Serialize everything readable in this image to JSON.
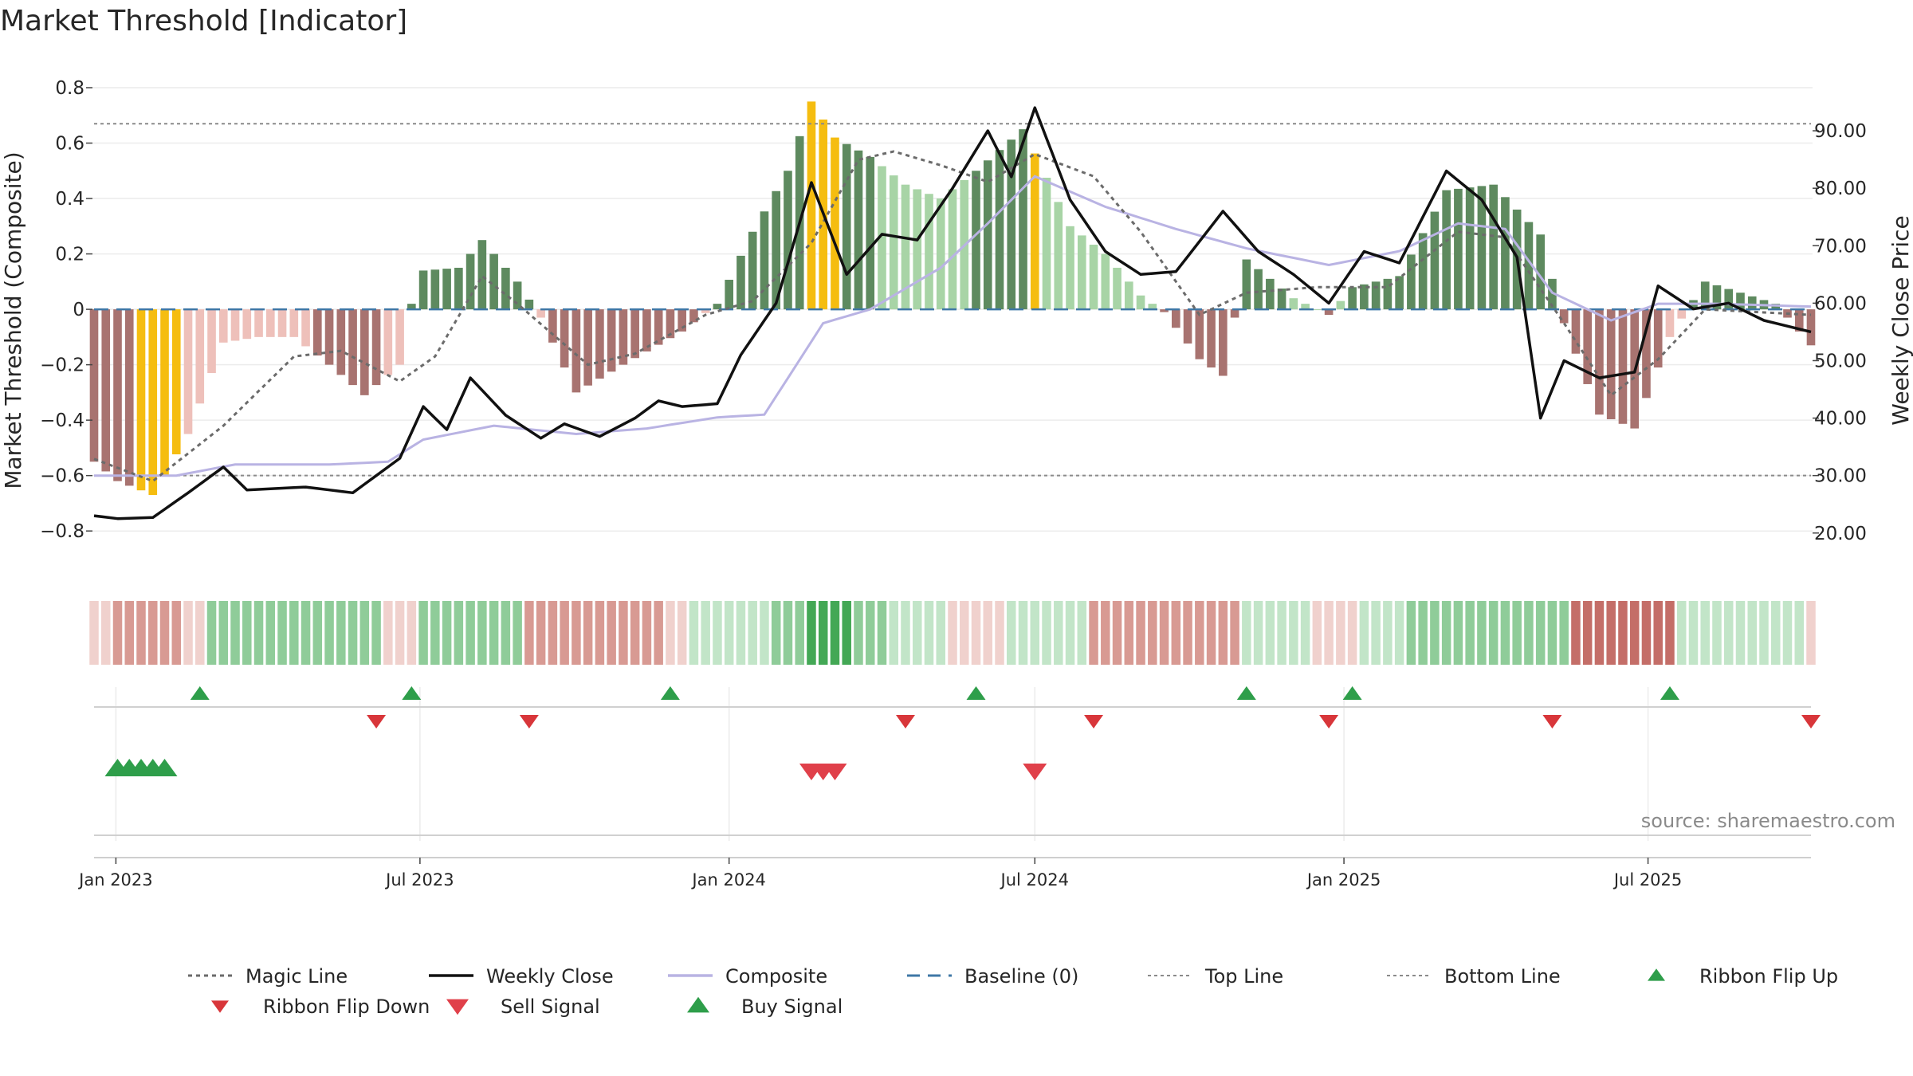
{
  "chart_data": {
    "type": "bar",
    "title": "Market Threshold [Indicator]",
    "ylabel_left": "Market Threshold (Composite)",
    "ylabel_right": "Weekly Close Price",
    "ylim_left": [
      -0.88,
      0.8
    ],
    "ylim_right": [
      16.5,
      97.5
    ],
    "left_ticks": [
      "0.8",
      "0.6",
      "0.4",
      "0.2",
      "0",
      "−0.2",
      "−0.4",
      "−0.6",
      "−0.8"
    ],
    "left_tick_values": [
      0.8,
      0.6,
      0.4,
      0.2,
      0,
      -0.2,
      -0.4,
      -0.6,
      -0.8
    ],
    "right_ticks": [
      "90.00",
      "80.00",
      "70.00",
      "60.00",
      "50.00",
      "40.00",
      "30.00",
      "20.00"
    ],
    "right_tick_values": [
      90,
      80,
      70,
      60,
      50,
      40,
      30,
      20
    ],
    "x_start": "2022-12-19",
    "x_end": "2025-10-06",
    "x_ticks": [
      {
        "label": "Jan 2023",
        "date": "2023-01-01"
      },
      {
        "label": "Jul 2023",
        "date": "2023-07-01"
      },
      {
        "label": "Jan 2024",
        "date": "2024-01-01"
      },
      {
        "label": "Jul 2024",
        "date": "2024-07-01"
      },
      {
        "label": "Jan 2025",
        "date": "2025-01-01"
      },
      {
        "label": "Jul 2025",
        "date": "2025-07-01"
      }
    ],
    "top_line": 0.67,
    "bottom_line": -0.6,
    "composite_anchors": [
      [
        "2022-12-19",
        -0.6
      ],
      [
        "2023-02-06",
        -0.6
      ],
      [
        "2023-03-13",
        -0.56
      ],
      [
        "2023-05-08",
        -0.56
      ],
      [
        "2023-06-12",
        -0.55
      ],
      [
        "2023-07-03",
        -0.47
      ],
      [
        "2023-08-14",
        -0.42
      ],
      [
        "2023-10-02",
        -0.45
      ],
      [
        "2023-11-13",
        -0.43
      ],
      [
        "2023-12-25",
        -0.39
      ],
      [
        "2024-01-22",
        -0.38
      ],
      [
        "2024-02-26",
        -0.05
      ],
      [
        "2024-03-25",
        0
      ],
      [
        "2024-05-06",
        0.15
      ],
      [
        "2024-06-03",
        0.31
      ],
      [
        "2024-07-01",
        0.48
      ],
      [
        "2024-08-12",
        0.37
      ],
      [
        "2024-09-23",
        0.29
      ],
      [
        "2024-11-04",
        0.22
      ],
      [
        "2024-12-23",
        0.16
      ],
      [
        "2025-02-03",
        0.21
      ],
      [
        "2025-03-10",
        0.31
      ],
      [
        "2025-04-07",
        0.29
      ],
      [
        "2025-05-05",
        0.06
      ],
      [
        "2025-06-09",
        -0.04
      ],
      [
        "2025-07-07",
        0.02
      ],
      [
        "2025-08-11",
        0.02
      ],
      [
        "2025-10-06",
        0.01
      ]
    ],
    "magic_line_anchors": [
      [
        "2022-12-19",
        -0.54
      ],
      [
        "2023-01-23",
        -0.62
      ],
      [
        "2023-03-06",
        -0.42
      ],
      [
        "2023-04-17",
        -0.17
      ],
      [
        "2023-05-15",
        -0.15
      ],
      [
        "2023-06-19",
        -0.26
      ],
      [
        "2023-07-10",
        -0.17
      ],
      [
        "2023-08-07",
        0.12
      ],
      [
        "2023-08-28",
        0.02
      ],
      [
        "2023-10-09",
        -0.2
      ],
      [
        "2023-11-06",
        -0.16
      ],
      [
        "2023-12-18",
        -0.02
      ],
      [
        "2024-01-15",
        0.03
      ],
      [
        "2024-02-19",
        0.24
      ],
      [
        "2024-03-18",
        0.54
      ],
      [
        "2024-04-08",
        0.57
      ],
      [
        "2024-05-06",
        0.52
      ],
      [
        "2024-06-03",
        0.46
      ],
      [
        "2024-07-01",
        0.56
      ],
      [
        "2024-08-05",
        0.48
      ],
      [
        "2024-09-02",
        0.28
      ],
      [
        "2024-10-07",
        -0.02
      ],
      [
        "2024-11-04",
        0.06
      ],
      [
        "2024-12-16",
        0.08
      ],
      [
        "2025-01-27",
        0.08
      ],
      [
        "2025-03-10",
        0.28
      ],
      [
        "2025-04-07",
        0.26
      ],
      [
        "2025-05-12",
        -0.05
      ],
      [
        "2025-06-09",
        -0.31
      ],
      [
        "2025-07-07",
        -0.18
      ],
      [
        "2025-08-04",
        0
      ],
      [
        "2025-10-06",
        -0.02
      ]
    ],
    "weekly_close_anchors": [
      [
        "2022-12-19",
        23
      ],
      [
        "2023-01-02",
        22.5
      ],
      [
        "2023-01-23",
        22.7
      ],
      [
        "2023-02-13",
        27
      ],
      [
        "2023-03-06",
        31.5
      ],
      [
        "2023-03-20",
        27.5
      ],
      [
        "2023-04-24",
        28
      ],
      [
        "2023-05-22",
        27
      ],
      [
        "2023-06-19",
        33
      ],
      [
        "2023-07-03",
        42
      ],
      [
        "2023-07-17",
        38
      ],
      [
        "2023-07-31",
        47
      ],
      [
        "2023-08-21",
        40.5
      ],
      [
        "2023-09-11",
        36.5
      ],
      [
        "2023-09-25",
        39
      ],
      [
        "2023-10-16",
        36.8
      ],
      [
        "2023-11-06",
        40
      ],
      [
        "2023-11-20",
        43
      ],
      [
        "2023-12-04",
        42
      ],
      [
        "2023-12-25",
        42.5
      ],
      [
        "2024-01-08",
        51
      ],
      [
        "2024-01-29",
        60
      ],
      [
        "2024-02-19",
        81
      ],
      [
        "2024-03-11",
        65
      ],
      [
        "2024-04-01",
        72
      ],
      [
        "2024-04-22",
        71
      ],
      [
        "2024-05-13",
        80
      ],
      [
        "2024-06-03",
        90
      ],
      [
        "2024-06-17",
        82
      ],
      [
        "2024-07-01",
        94
      ],
      [
        "2024-07-22",
        78
      ],
      [
        "2024-08-12",
        69
      ],
      [
        "2024-09-02",
        65
      ],
      [
        "2024-09-23",
        65.5
      ],
      [
        "2024-10-21",
        76
      ],
      [
        "2024-11-11",
        69
      ],
      [
        "2024-12-02",
        65
      ],
      [
        "2024-12-23",
        60
      ],
      [
        "2025-01-13",
        69
      ],
      [
        "2025-02-03",
        67
      ],
      [
        "2025-03-03",
        83
      ],
      [
        "2025-03-24",
        78
      ],
      [
        "2025-04-14",
        68
      ],
      [
        "2025-04-28",
        40
      ],
      [
        "2025-05-12",
        50
      ],
      [
        "2025-06-02",
        47
      ],
      [
        "2025-06-23",
        48
      ],
      [
        "2025-07-07",
        63
      ],
      [
        "2025-07-28",
        59
      ],
      [
        "2025-08-18",
        60
      ],
      [
        "2025-09-08",
        57
      ],
      [
        "2025-10-06",
        55
      ]
    ],
    "bar_anchors": [
      [
        "2022-12-19",
        -0.55
      ],
      [
        "2023-01-02",
        -0.62
      ],
      [
        "2023-01-23",
        -0.67
      ],
      [
        "2023-02-13",
        -0.45
      ],
      [
        "2023-03-06",
        -0.12
      ],
      [
        "2023-03-27",
        -0.1
      ],
      [
        "2023-04-17",
        -0.1
      ],
      [
        "2023-05-08",
        -0.2
      ],
      [
        "2023-05-29",
        -0.31
      ],
      [
        "2023-06-19",
        -0.2
      ],
      [
        "2023-06-26",
        0.02
      ],
      [
        "2023-07-03",
        0.14
      ],
      [
        "2023-07-24",
        0.15
      ],
      [
        "2023-08-07",
        0.25
      ],
      [
        "2023-08-28",
        0.1
      ],
      [
        "2023-09-11",
        -0.03
      ],
      [
        "2023-10-02",
        -0.3
      ],
      [
        "2023-10-30",
        -0.2
      ],
      [
        "2023-12-04",
        -0.08
      ],
      [
        "2023-12-25",
        0.02
      ],
      [
        "2024-01-15",
        0.28
      ],
      [
        "2024-02-05",
        0.5
      ],
      [
        "2024-02-19",
        0.75
      ],
      [
        "2024-03-04",
        0.62
      ],
      [
        "2024-03-25",
        0.55
      ],
      [
        "2024-04-15",
        0.45
      ],
      [
        "2024-05-06",
        0.4
      ],
      [
        "2024-05-27",
        0.5
      ],
      [
        "2024-06-24",
        0.65
      ],
      [
        "2024-07-22",
        0.3
      ],
      [
        "2024-08-12",
        0.2
      ],
      [
        "2024-09-02",
        0.05
      ],
      [
        "2024-09-16",
        -0.01
      ],
      [
        "2024-10-07",
        -0.18
      ],
      [
        "2024-10-21",
        -0.24
      ],
      [
        "2024-11-04",
        0.18
      ],
      [
        "2024-12-02",
        0.04
      ],
      [
        "2024-12-23",
        -0.02
      ],
      [
        "2025-01-06",
        0.08
      ],
      [
        "2025-02-03",
        0.12
      ],
      [
        "2025-03-03",
        0.43
      ],
      [
        "2025-03-31",
        0.45
      ],
      [
        "2025-04-28",
        0.27
      ],
      [
        "2025-05-12",
        -0.05
      ],
      [
        "2025-06-02",
        -0.38
      ],
      [
        "2025-06-23",
        -0.43
      ],
      [
        "2025-07-14",
        -0.1
      ],
      [
        "2025-08-04",
        0.1
      ],
      [
        "2025-09-15",
        0.02
      ],
      [
        "2025-10-06",
        -0.13
      ]
    ],
    "yellow_bar_dates": [
      "2023-01-16",
      "2023-01-23",
      "2023-01-30",
      "2023-02-06",
      "2024-02-19",
      "2024-02-26",
      "2024-03-04",
      "2024-07-01"
    ],
    "ribbon_colors": {
      "strong_green": "#43a855",
      "green": "#8fcc99",
      "light_green": "#c2e5c8",
      "light_red": "#f0d1cd",
      "red": "#d89a93",
      "strong_red": "#c46e68"
    },
    "ribbon_runs": [
      [
        "2022-12-19",
        "light_red"
      ],
      [
        "2023-01-02",
        "red"
      ],
      [
        "2023-02-13",
        "light_red"
      ],
      [
        "2023-02-27",
        "green"
      ],
      [
        "2023-06-12",
        "light_red"
      ],
      [
        "2023-07-03",
        "green"
      ],
      [
        "2023-09-04",
        "red"
      ],
      [
        "2023-11-27",
        "light_red"
      ],
      [
        "2023-12-11",
        "light_green"
      ],
      [
        "2024-01-29",
        "green"
      ],
      [
        "2024-02-19",
        "strong_green"
      ],
      [
        "2024-03-18",
        "green"
      ],
      [
        "2024-04-08",
        "light_green"
      ],
      [
        "2024-05-13",
        "light_red"
      ],
      [
        "2024-06-17",
        "light_green"
      ],
      [
        "2024-08-05",
        "red"
      ],
      [
        "2024-11-04",
        "light_green"
      ],
      [
        "2024-12-16",
        "light_red"
      ],
      [
        "2025-01-13",
        "light_green"
      ],
      [
        "2025-02-10",
        "green"
      ],
      [
        "2025-05-19",
        "strong_red"
      ],
      [
        "2025-07-21",
        "light_green"
      ],
      [
        "2025-10-06",
        "light_red"
      ]
    ],
    "ribbon_flip_up": [
      "2023-02-20",
      "2023-06-26",
      "2023-11-27",
      "2024-05-27",
      "2024-11-04",
      "2025-01-06",
      "2025-07-14"
    ],
    "ribbon_flip_down": [
      "2023-06-05",
      "2023-09-04",
      "2024-04-15",
      "2024-08-05",
      "2024-12-23",
      "2025-05-05",
      "2025-10-06"
    ],
    "buy_signals": [
      "2023-01-02",
      "2023-01-09",
      "2023-01-16",
      "2023-01-23",
      "2023-01-30"
    ],
    "sell_signals": [
      "2024-02-19",
      "2024-02-26",
      "2024-03-04",
      "2024-07-01"
    ],
    "source": "source: sharemaestro.com",
    "legend": [
      {
        "label": "Magic Line",
        "kind": "dotted",
        "color": "#6b6b6b"
      },
      {
        "label": "Weekly Close",
        "kind": "solid",
        "color": "#111111"
      },
      {
        "label": "Composite",
        "kind": "solid",
        "color": "#b9b3e3"
      },
      {
        "label": "Baseline (0)",
        "kind": "dashed",
        "color": "#3f77a6"
      },
      {
        "label": "Top Line",
        "kind": "dotted-thin",
        "color": "#8a8a8a"
      },
      {
        "label": "Bottom Line",
        "kind": "dotted-thin",
        "color": "#8a8a8a"
      },
      {
        "label": "Ribbon Flip Up",
        "kind": "tri-up-small",
        "color": "#2e9e4a"
      },
      {
        "label": "Ribbon Flip Down",
        "kind": "tri-down-small",
        "color": "#d8363a"
      },
      {
        "label": "Sell Signal",
        "kind": "tri-down-big",
        "color": "#e0404a"
      },
      {
        "label": "Buy Signal",
        "kind": "tri-up-big",
        "color": "#2e9e4a"
      }
    ],
    "bar_colors": {
      "pos_strong": "#5e8a5f",
      "pos_light": "#a8d4a6",
      "neg_strong": "#a87370",
      "neg_light": "#eec0ba",
      "signal": "#f5bd10"
    }
  }
}
